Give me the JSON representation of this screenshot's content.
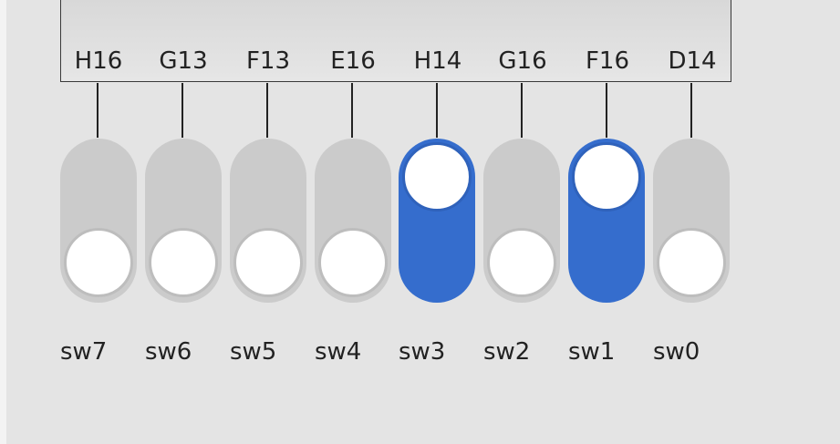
{
  "chip": {
    "pins": [
      "H16",
      "G13",
      "F13",
      "E16",
      "H14",
      "G16",
      "F16",
      "D14"
    ]
  },
  "switches": [
    {
      "label": "sw7",
      "state": "off"
    },
    {
      "label": "sw6",
      "state": "off"
    },
    {
      "label": "sw5",
      "state": "off"
    },
    {
      "label": "sw4",
      "state": "off"
    },
    {
      "label": "sw3",
      "state": "on"
    },
    {
      "label": "sw2",
      "state": "off"
    },
    {
      "label": "sw1",
      "state": "on"
    },
    {
      "label": "sw0",
      "state": "off"
    }
  ],
  "colors": {
    "switch_on": "#356dcd",
    "switch_off": "#cbcbcb",
    "background": "#e4e4e4"
  }
}
